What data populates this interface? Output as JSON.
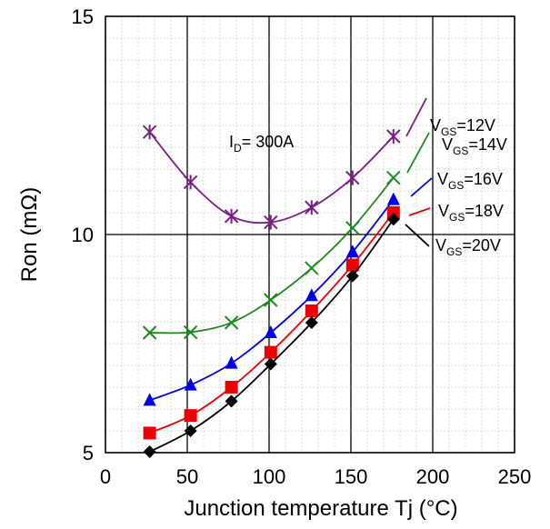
{
  "chart_data": {
    "type": "line",
    "title": "",
    "xlabel": "Junction temperature Tj (°C)",
    "ylabel": "Ron (mΩ)",
    "xlim": [
      0,
      250
    ],
    "ylim": [
      5,
      15
    ],
    "xticks": [
      0,
      50,
      100,
      150,
      200,
      250
    ],
    "yticks": [
      5,
      10,
      15
    ],
    "grid": true,
    "annotation": {
      "main": "I",
      "sub": "D",
      "rest": "= 300A"
    },
    "x": [
      27,
      52,
      77,
      101,
      126,
      151,
      176
    ],
    "series": [
      {
        "label_main": "V",
        "label_sub": "GS",
        "label_rest": "=12V",
        "color": "#7b1f85",
        "marker": "star",
        "values": [
          12.35,
          11.2,
          10.42,
          10.28,
          10.62,
          11.3,
          12.25
        ]
      },
      {
        "label_main": "V",
        "label_sub": "GS",
        "label_rest": "=14V",
        "color": "#1a8a1a",
        "marker": "x",
        "values": [
          7.75,
          7.76,
          7.98,
          8.5,
          9.23,
          10.15,
          11.3
        ]
      },
      {
        "label_main": "V",
        "label_sub": "GS",
        "label_rest": "=16V",
        "color": "#0000ee",
        "marker": "triangle",
        "values": [
          6.2,
          6.55,
          7.05,
          7.75,
          8.6,
          9.6,
          10.8
        ]
      },
      {
        "label_main": "V",
        "label_sub": "GS",
        "label_rest": "=18V",
        "color": "#ee0000",
        "marker": "square",
        "values": [
          5.45,
          5.85,
          6.5,
          7.3,
          8.25,
          9.3,
          10.5
        ]
      },
      {
        "label_main": "V",
        "label_sub": "GS",
        "label_rest": "=20V",
        "color": "#000000",
        "marker": "diamond",
        "values": [
          5.02,
          5.5,
          6.18,
          7.03,
          7.98,
          9.05,
          10.35
        ]
      }
    ]
  }
}
